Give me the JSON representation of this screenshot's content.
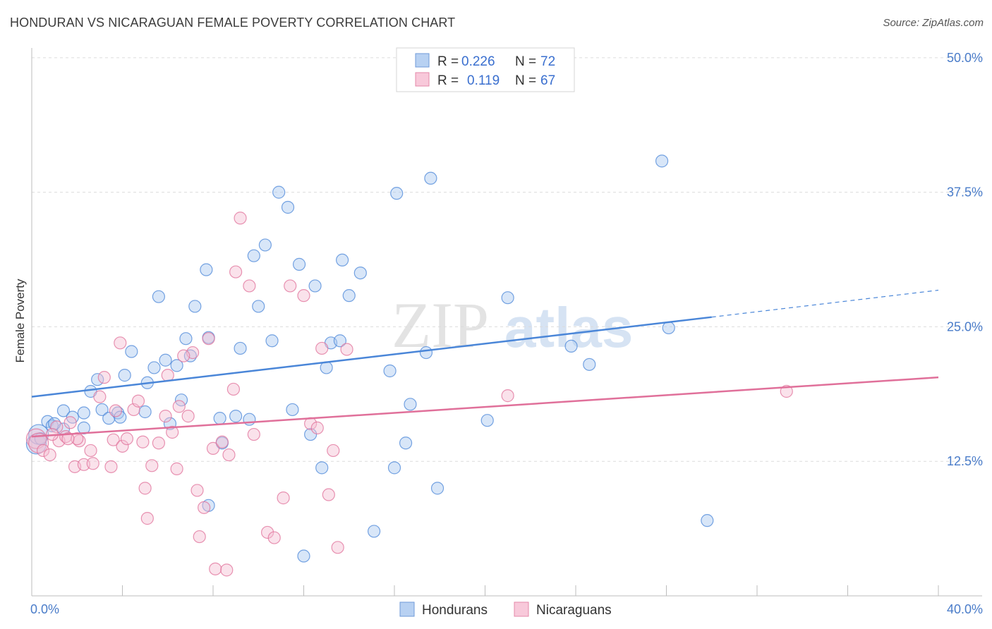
{
  "title": "HONDURAN VS NICARAGUAN FEMALE POVERTY CORRELATION CHART",
  "source": "Source: ZipAtlas.com",
  "watermark": {
    "zip": "ZIP",
    "atlas": "atlas"
  },
  "chart_data": {
    "type": "scatter",
    "ylabel": "Female Poverty",
    "xlim": [
      0,
      40
    ],
    "ylim": [
      0,
      50
    ],
    "x_tick_labels": [
      {
        "value": 0,
        "label": "0.0%"
      },
      {
        "value": 40,
        "label": "40.0%"
      }
    ],
    "y_tick_labels": [
      {
        "value": 12.5,
        "label": "12.5%"
      },
      {
        "value": 25,
        "label": "25.0%"
      },
      {
        "value": 37.5,
        "label": "37.5%"
      },
      {
        "value": 50,
        "label": "50.0%"
      }
    ],
    "gridlines": [
      12.5,
      25,
      37.5,
      50
    ],
    "legend_top": [
      {
        "r_label": "R =",
        "r_value": "0.226",
        "n_label": "N =",
        "n_value": "72",
        "series": "Hondurans"
      },
      {
        "r_label": "R =",
        "r_value": "0.119",
        "n_label": "N =",
        "n_value": "67",
        "series": "Nicaraguans"
      }
    ],
    "series": [
      {
        "name": "Hondurans",
        "color": "#4a86d8",
        "fill": "#a8c8ef",
        "trend": {
          "x0": 0,
          "y0": 18.5,
          "x1": 30,
          "y1": 25.9,
          "x_dash_end": 40,
          "y_dash_end": 28.4
        },
        "points": [
          [
            0.2,
            14.1
          ],
          [
            0.3,
            15.0
          ],
          [
            0.4,
            14.6
          ],
          [
            0.7,
            16.2
          ],
          [
            0.9,
            15.8
          ],
          [
            1.4,
            15.5
          ],
          [
            1.4,
            17.2
          ],
          [
            1.8,
            16.6
          ],
          [
            2.3,
            17.0
          ],
          [
            2.6,
            19.0
          ],
          [
            2.9,
            20.1
          ],
          [
            3.1,
            17.3
          ],
          [
            3.4,
            16.5
          ],
          [
            3.8,
            17.0
          ],
          [
            3.9,
            16.6
          ],
          [
            4.1,
            20.5
          ],
          [
            4.4,
            22.7
          ],
          [
            5.0,
            17.1
          ],
          [
            5.1,
            19.8
          ],
          [
            5.4,
            21.2
          ],
          [
            5.6,
            27.8
          ],
          [
            5.9,
            21.9
          ],
          [
            6.1,
            16.0
          ],
          [
            6.4,
            21.4
          ],
          [
            6.6,
            18.2
          ],
          [
            6.8,
            23.9
          ],
          [
            7.0,
            22.3
          ],
          [
            7.2,
            26.9
          ],
          [
            7.7,
            30.3
          ],
          [
            7.8,
            24.0
          ],
          [
            8.3,
            16.5
          ],
          [
            8.4,
            14.2
          ],
          [
            9.0,
            16.7
          ],
          [
            9.2,
            23.0
          ],
          [
            9.6,
            16.4
          ],
          [
            9.8,
            31.6
          ],
          [
            10.0,
            26.9
          ],
          [
            10.3,
            32.6
          ],
          [
            10.6,
            23.7
          ],
          [
            10.9,
            37.5
          ],
          [
            11.3,
            36.1
          ],
          [
            11.5,
            17.3
          ],
          [
            11.8,
            30.8
          ],
          [
            12.3,
            15.0
          ],
          [
            12.5,
            28.8
          ],
          [
            12.8,
            11.9
          ],
          [
            13.0,
            21.2
          ],
          [
            13.2,
            23.5
          ],
          [
            13.6,
            23.7
          ],
          [
            13.7,
            31.2
          ],
          [
            14.0,
            27.9
          ],
          [
            14.5,
            30.0
          ],
          [
            15.1,
            6.0
          ],
          [
            15.8,
            20.9
          ],
          [
            16.0,
            11.9
          ],
          [
            16.1,
            37.4
          ],
          [
            16.5,
            14.2
          ],
          [
            16.7,
            17.8
          ],
          [
            17.4,
            22.6
          ],
          [
            17.6,
            38.8
          ],
          [
            17.9,
            10.0
          ],
          [
            20.1,
            16.3
          ],
          [
            21.0,
            27.7
          ],
          [
            23.8,
            23.2
          ],
          [
            24.6,
            21.5
          ],
          [
            27.8,
            40.4
          ],
          [
            28.1,
            24.9
          ],
          [
            29.8,
            7.0
          ],
          [
            12.0,
            3.7
          ],
          [
            7.8,
            8.4
          ],
          [
            2.3,
            15.6
          ],
          [
            1.0,
            16.0
          ]
        ]
      },
      {
        "name": "Nicaraguans",
        "color": "#e0709a",
        "fill": "#f5bfd3",
        "trend": {
          "x0": 0,
          "y0": 14.8,
          "x1": 40,
          "y1": 20.3
        },
        "points": [
          [
            0.2,
            14.6
          ],
          [
            0.3,
            14.2
          ],
          [
            0.5,
            13.5
          ],
          [
            0.8,
            13.1
          ],
          [
            1.1,
            15.7
          ],
          [
            1.2,
            14.4
          ],
          [
            1.5,
            14.8
          ],
          [
            1.7,
            16.1
          ],
          [
            1.9,
            12.0
          ],
          [
            2.1,
            14.4
          ],
          [
            2.3,
            12.2
          ],
          [
            2.6,
            13.5
          ],
          [
            2.7,
            12.3
          ],
          [
            3.0,
            18.5
          ],
          [
            3.2,
            20.3
          ],
          [
            3.5,
            12.0
          ],
          [
            3.6,
            14.5
          ],
          [
            3.9,
            23.5
          ],
          [
            4.0,
            13.9
          ],
          [
            4.2,
            14.6
          ],
          [
            4.5,
            17.3
          ],
          [
            4.7,
            18.1
          ],
          [
            4.9,
            14.3
          ],
          [
            5.0,
            10.0
          ],
          [
            5.1,
            7.2
          ],
          [
            5.3,
            12.1
          ],
          [
            5.6,
            14.2
          ],
          [
            5.9,
            16.7
          ],
          [
            6.0,
            20.5
          ],
          [
            6.2,
            15.2
          ],
          [
            6.4,
            11.8
          ],
          [
            6.5,
            17.6
          ],
          [
            6.9,
            16.7
          ],
          [
            7.1,
            22.6
          ],
          [
            7.3,
            9.8
          ],
          [
            7.4,
            5.5
          ],
          [
            7.6,
            8.2
          ],
          [
            7.8,
            23.9
          ],
          [
            8.0,
            13.7
          ],
          [
            8.1,
            2.5
          ],
          [
            8.4,
            14.3
          ],
          [
            8.6,
            2.4
          ],
          [
            8.7,
            13.1
          ],
          [
            8.9,
            19.2
          ],
          [
            9.0,
            30.1
          ],
          [
            9.2,
            35.1
          ],
          [
            9.6,
            28.8
          ],
          [
            9.8,
            15.0
          ],
          [
            10.4,
            5.9
          ],
          [
            10.7,
            5.4
          ],
          [
            11.1,
            9.1
          ],
          [
            11.4,
            28.8
          ],
          [
            12.0,
            27.9
          ],
          [
            12.3,
            16.0
          ],
          [
            12.6,
            15.6
          ],
          [
            12.8,
            23.0
          ],
          [
            13.1,
            9.4
          ],
          [
            13.3,
            13.5
          ],
          [
            13.5,
            4.5
          ],
          [
            13.9,
            22.9
          ],
          [
            21.0,
            18.6
          ],
          [
            33.3,
            19.0
          ],
          [
            2.0,
            14.6
          ],
          [
            3.7,
            17.2
          ],
          [
            6.7,
            22.3
          ],
          [
            0.9,
            15.0
          ],
          [
            1.6,
            14.6
          ]
        ]
      }
    ]
  }
}
